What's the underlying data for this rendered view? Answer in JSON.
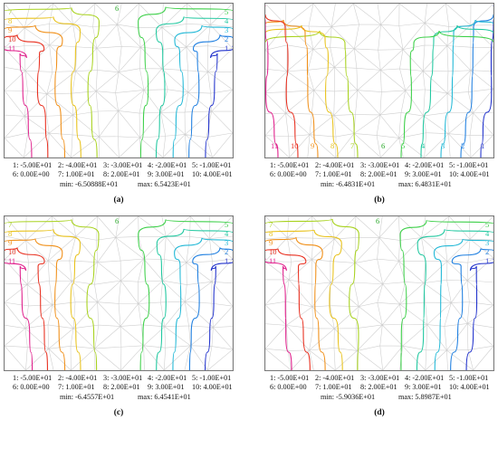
{
  "colors": {
    "1": "#2233cc",
    "2": "#1f7fe0",
    "3": "#22b8d6",
    "4": "#22c8a0",
    "5": "#3ed04a",
    "6": "#2aa82a",
    "7": "#a8d21e",
    "8": "#e8c21c",
    "9": "#f0901a",
    "10": "#e83020",
    "11": "#e0208c",
    "mesh": "#cfcfcf",
    "frame": "#7a7a7a"
  },
  "legend": {
    "row1": [
      "1: -5.00E+01",
      "2: -4.00E+01",
      "3: -3.00E+01",
      "4: -2.00E+01",
      "5: -1.00E+01"
    ],
    "row2": [
      "6: 0.00E+00",
      "7: 1.00E+01",
      "8: 2.00E+01",
      "9: 3.00E+01",
      "10: 4.00E+01"
    ]
  },
  "panels": [
    {
      "caption": "(a)",
      "min": "min: -6.50888E+01",
      "max": "max: 6.5423E+01",
      "labels": [
        "11",
        "10",
        "9",
        "8",
        "7",
        "6",
        "5",
        "4",
        "3",
        "2",
        "1"
      ]
    },
    {
      "caption": "(b)",
      "min": "min: -6.4831E+01",
      "max": "max: 6.4831E+01",
      "labels": [
        "11",
        "10",
        "9",
        "8",
        "7",
        "6",
        "5",
        "4",
        "3",
        "2",
        "1"
      ]
    },
    {
      "caption": "(c)",
      "min": "min: -6.4557E+01",
      "max": "max: 6.4541E+01",
      "labels": [
        "11",
        "10",
        "9",
        "8",
        "7",
        "6",
        "5",
        "4",
        "3",
        "2",
        "1"
      ]
    },
    {
      "caption": "(d)",
      "min": "min: -5.9036E+01",
      "max": "max: 5.8987E+01",
      "labels": [
        "11",
        "10",
        "9",
        "8",
        "7",
        "6",
        "5",
        "4",
        "3",
        "2",
        "1"
      ]
    }
  ]
}
